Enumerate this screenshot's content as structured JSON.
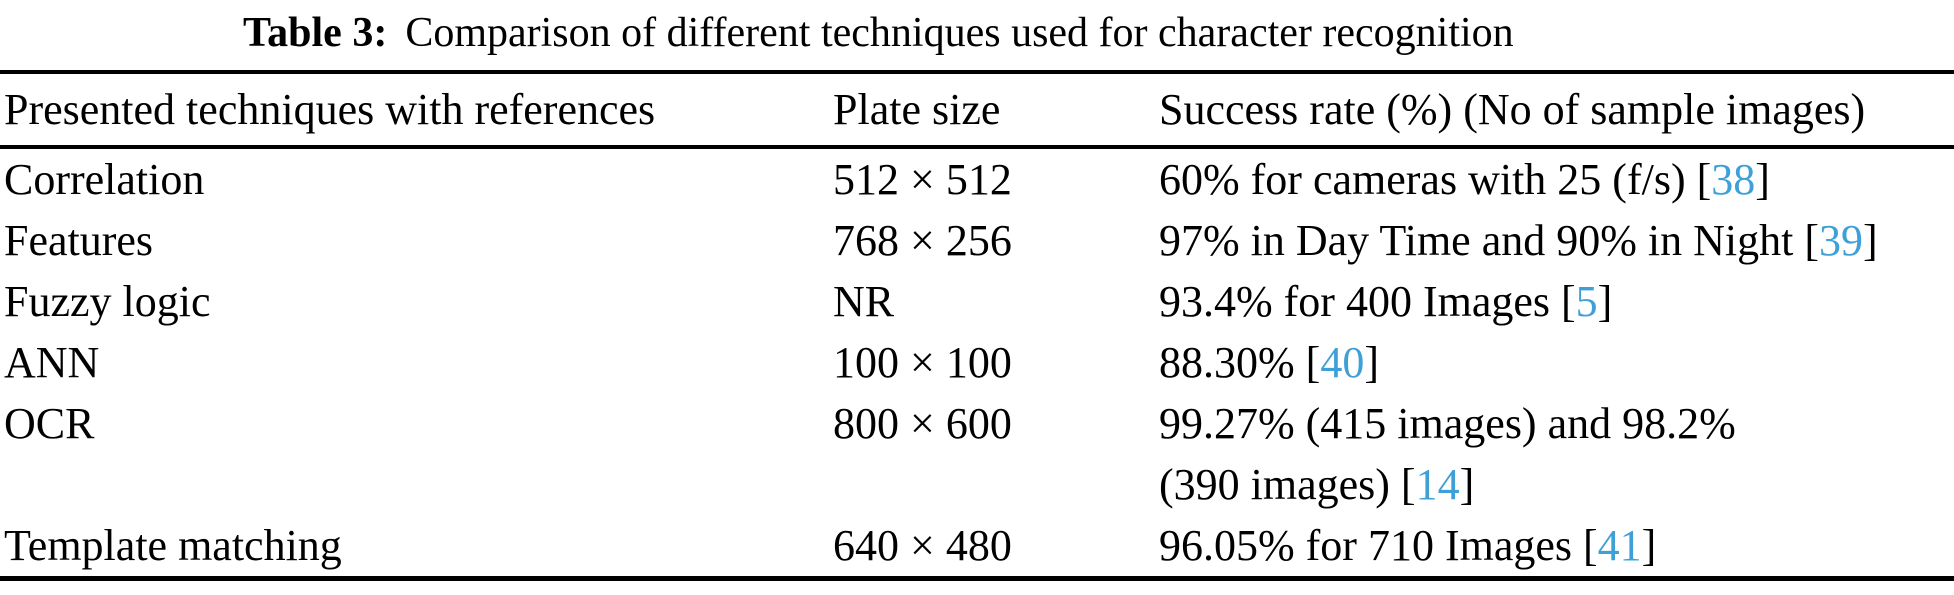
{
  "caption": {
    "label": "Table 3:",
    "text": "Comparison of different techniques used for character recognition"
  },
  "accent_color": "#3FA0D8",
  "table": {
    "columns": [
      "Presented techniques with references",
      "Plate size",
      "Success rate (%) (No of sample images)"
    ],
    "rows": [
      {
        "technique": "Correlation",
        "plate_size": "512 × 512",
        "success_pre": "60% for cameras with 25 (f/s) [",
        "citation": "38",
        "success_post": "]"
      },
      {
        "technique": "Features",
        "plate_size": "768 × 256",
        "success_pre": "97% in Day Time and 90% in Night [",
        "citation": "39",
        "success_post": "]"
      },
      {
        "technique": "Fuzzy logic",
        "plate_size": "NR",
        "success_pre": "93.4% for 400 Images [",
        "citation": "5",
        "success_post": "]"
      },
      {
        "technique": "ANN",
        "plate_size": "100 × 100",
        "success_pre": "88.30% [",
        "citation": "40",
        "success_post": "]"
      },
      {
        "technique": "OCR",
        "plate_size": "800 × 600",
        "success_pre": "99.27% (415 images) and 98.2%\n(390 images) [",
        "citation": "14",
        "success_post": "]"
      },
      {
        "technique": "Template matching",
        "plate_size": "640 × 480",
        "success_pre": "96.05% for 710 Images [",
        "citation": "41",
        "success_post": "]"
      }
    ]
  }
}
